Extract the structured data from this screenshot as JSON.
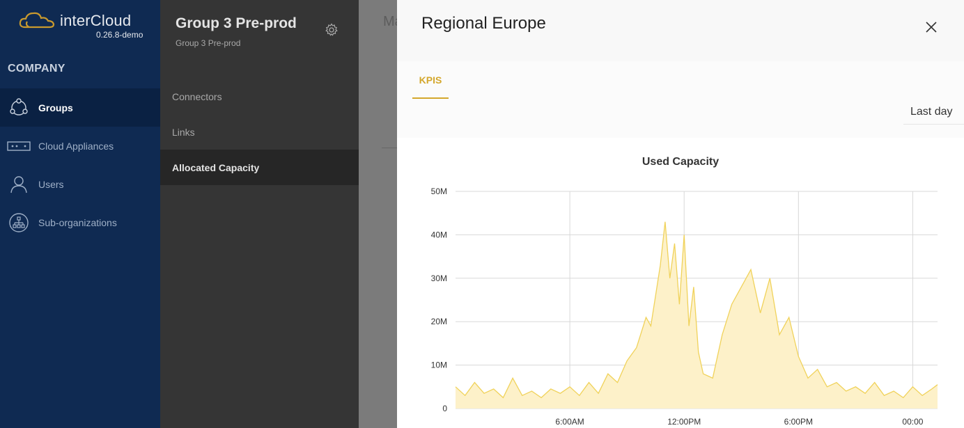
{
  "app": {
    "name": "interCloud",
    "version": "0.26.8-demo"
  },
  "sidebar": {
    "section": "COMPANY",
    "items": [
      {
        "label": "Groups",
        "icon": "groups-icon",
        "active": true
      },
      {
        "label": "Cloud Appliances",
        "icon": "appliance-icon",
        "active": false
      },
      {
        "label": "Users",
        "icon": "user-icon",
        "active": false
      },
      {
        "label": "Sub-organizations",
        "icon": "org-icon",
        "active": false
      }
    ]
  },
  "group_panel": {
    "title": "Group 3 Pre-prod",
    "subtitle": "Group 3 Pre-prod",
    "items": [
      {
        "label": "Connectors",
        "active": false
      },
      {
        "label": "Links",
        "active": false
      },
      {
        "label": "Allocated Capacity",
        "active": true
      }
    ]
  },
  "background": {
    "heading_fragment": "Ma"
  },
  "drawer": {
    "title": "Regional Europe",
    "tabs": [
      {
        "label": "KPIS",
        "active": true
      }
    ],
    "period": "Last day"
  },
  "colors": {
    "sidebar_bg": "#0f2a52",
    "accent": "#d4a72c",
    "series_line": "#f0d25a",
    "series_fill": "#fdf1c9"
  },
  "chart_data": {
    "type": "area",
    "title": "Used Capacity",
    "xlabel": "",
    "ylabel": "",
    "ylim": [
      0,
      50000000
    ],
    "yticks": [
      "0",
      "10M",
      "20M",
      "30M",
      "40M",
      "50M"
    ],
    "xticks": [
      "6:00AM",
      "12:00PM",
      "6:00PM",
      "00:00"
    ],
    "x_hours": [
      0,
      0.5,
      1,
      1.5,
      2,
      2.5,
      3,
      3.5,
      4,
      4.5,
      5,
      5.5,
      6,
      6.5,
      7,
      7.5,
      8,
      8.5,
      9,
      9.5,
      10,
      10.25,
      10.5,
      10.75,
      11,
      11.25,
      11.5,
      11.75,
      12,
      12.25,
      12.5,
      12.75,
      13,
      13.5,
      14,
      14.5,
      15,
      15.5,
      16,
      16.5,
      17,
      17.5,
      18,
      18.5,
      19,
      19.5,
      20,
      20.5,
      21,
      21.5,
      22,
      22.5,
      23,
      23.5,
      24,
      24.5,
      25,
      25.3
    ],
    "values": [
      5000000,
      3000000,
      6000000,
      3500000,
      4500000,
      2500000,
      7000000,
      3000000,
      4000000,
      2500000,
      4500000,
      3500000,
      5000000,
      3000000,
      6000000,
      3500000,
      8000000,
      6000000,
      11000000,
      14000000,
      21000000,
      19000000,
      26000000,
      33000000,
      43000000,
      30000000,
      38000000,
      24000000,
      40000000,
      19000000,
      28000000,
      13000000,
      8000000,
      7000000,
      17000000,
      24000000,
      28000000,
      32000000,
      22000000,
      30000000,
      17000000,
      21000000,
      12000000,
      7000000,
      9000000,
      5000000,
      6000000,
      4000000,
      5000000,
      3500000,
      6000000,
      3000000,
      4000000,
      2500000,
      5000000,
      3000000,
      4500000,
      5500000
    ],
    "grid": true,
    "legend": "none"
  }
}
